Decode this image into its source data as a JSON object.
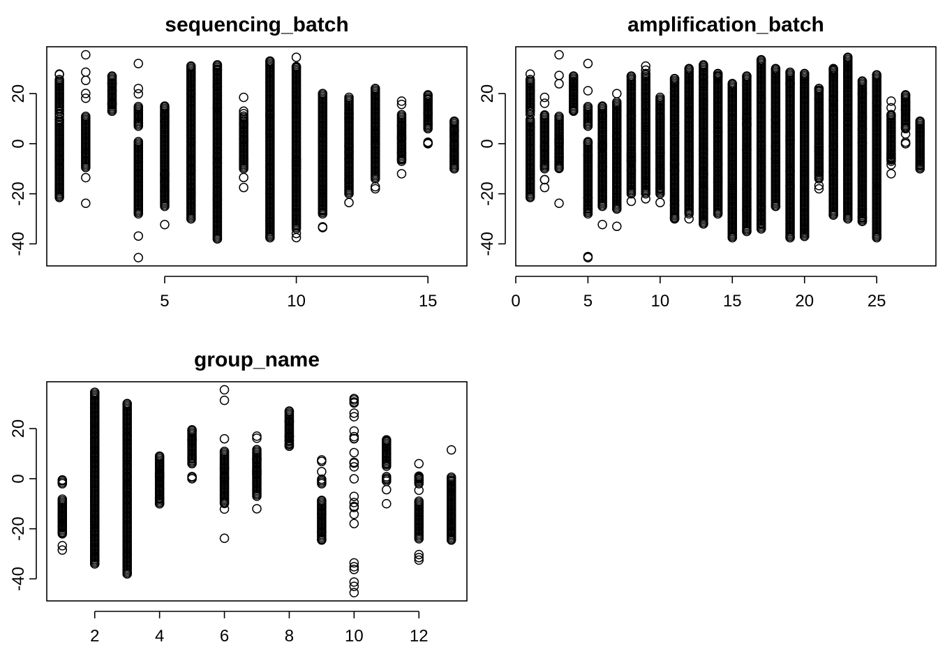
{
  "chart_data": [
    {
      "type": "scatter",
      "title": "sequencing_batch",
      "xlabel": "",
      "ylabel": "",
      "xlim": [
        0.52,
        16.48
      ],
      "ylim": [
        -48.8,
        38.7
      ],
      "xticks": [
        5,
        10,
        15
      ],
      "yticks": [
        -40,
        -20,
        0,
        20
      ],
      "groups": [
        {
          "x": 1,
          "ymin": -21.5,
          "ymax": 27.8,
          "dense": [
            [
              -21,
              10
            ],
            [
              13,
              26
            ]
          ]
        },
        {
          "x": 2,
          "ymin": -23.8,
          "ymax": 35.5,
          "dense": [
            [
              -9.5,
              11
            ]
          ]
        },
        {
          "x": 3,
          "ymin": 13,
          "ymax": 27,
          "dense": [
            [
              13,
              27
            ]
          ]
        },
        {
          "x": 4,
          "ymin": -45.5,
          "ymax": 32,
          "dense": [
            [
              -28,
              1
            ],
            [
              7,
              15
            ]
          ]
        },
        {
          "x": 5,
          "ymin": -32.3,
          "ymax": 15,
          "dense": [
            [
              -25,
              15
            ]
          ]
        },
        {
          "x": 6,
          "ymin": -30,
          "ymax": 31,
          "dense": [
            [
              -30,
              31
            ]
          ]
        },
        {
          "x": 7,
          "ymin": -38,
          "ymax": 31.5,
          "dense": [
            [
              -38,
              31.5
            ]
          ]
        },
        {
          "x": 8,
          "ymin": -17.5,
          "ymax": 18.5,
          "dense": [
            [
              -10,
              11
            ]
          ]
        },
        {
          "x": 9,
          "ymin": -37.5,
          "ymax": 33,
          "dense": [
            [
              -37.5,
              33
            ]
          ]
        },
        {
          "x": 10,
          "ymin": -37.5,
          "ymax": 34.5,
          "dense": [
            [
              -34,
              31
            ]
          ]
        },
        {
          "x": 11,
          "ymin": -33.5,
          "ymax": 20,
          "dense": [
            [
              -28,
              20
            ]
          ]
        },
        {
          "x": 12,
          "ymin": -23.5,
          "ymax": 18.5,
          "dense": [
            [
              -20,
              18
            ]
          ]
        },
        {
          "x": 13,
          "ymin": -18,
          "ymax": 22,
          "dense": [
            [
              -14,
              22
            ]
          ]
        },
        {
          "x": 14,
          "ymin": -12,
          "ymax": 17,
          "dense": [
            [
              -7,
              12
            ]
          ]
        },
        {
          "x": 15,
          "ymin": 0,
          "ymax": 19.5,
          "dense": [
            [
              0,
              1
            ],
            [
              6,
              19.5
            ]
          ]
        },
        {
          "x": 16,
          "ymin": -10,
          "ymax": 9,
          "dense": [
            [
              -10,
              9
            ]
          ]
        }
      ]
    },
    {
      "type": "scatter",
      "title": "amplification_batch",
      "xlabel": "",
      "ylabel": "",
      "xlim": [
        0,
        29.1
      ],
      "ylim": [
        -48.8,
        38.7
      ],
      "xticks": [
        0,
        5,
        10,
        15,
        20,
        25
      ],
      "yticks": [
        -40,
        -20,
        0,
        20
      ],
      "groups": [
        {
          "x": 1,
          "ymin": -21.5,
          "ymax": 27.8,
          "dense": [
            [
              -21,
              10
            ],
            [
              13,
              26
            ]
          ]
        },
        {
          "x": 2,
          "ymin": -17.5,
          "ymax": 18.5,
          "dense": [
            [
              -10,
              11
            ]
          ]
        },
        {
          "x": 3,
          "ymin": -23.8,
          "ymax": 35.5,
          "dense": [
            [
              -9.5,
              11
            ]
          ]
        },
        {
          "x": 4,
          "ymin": 13,
          "ymax": 27,
          "dense": [
            [
              13,
              27
            ]
          ]
        },
        {
          "x": 5,
          "ymin": -45.5,
          "ymax": 32,
          "dense": [
            [
              -28,
              1
            ],
            [
              7,
              15
            ]
          ]
        },
        {
          "x": 6,
          "ymin": -32.3,
          "ymax": 15,
          "dense": [
            [
              -25,
              15
            ]
          ]
        },
        {
          "x": 7,
          "ymin": -33,
          "ymax": 20,
          "dense": [
            [
              -26,
              17
            ]
          ]
        },
        {
          "x": 8,
          "ymin": -23,
          "ymax": 27,
          "dense": [
            [
              -20,
              27
            ]
          ]
        },
        {
          "x": 9,
          "ymin": -22,
          "ymax": 31,
          "dense": [
            [
              -20,
              28
            ]
          ]
        },
        {
          "x": 10,
          "ymin": -23.5,
          "ymax": 18.5,
          "dense": [
            [
              -20,
              18
            ]
          ]
        },
        {
          "x": 11,
          "ymin": -30,
          "ymax": 26,
          "dense": [
            [
              -30,
              26
            ]
          ]
        },
        {
          "x": 12,
          "ymin": -30,
          "ymax": 30,
          "dense": [
            [
              -28,
              30
            ]
          ]
        },
        {
          "x": 13,
          "ymin": -32,
          "ymax": 31.5,
          "dense": [
            [
              -32,
              31.5
            ]
          ]
        },
        {
          "x": 14,
          "ymin": -28,
          "ymax": 28,
          "dense": [
            [
              -28,
              28
            ]
          ]
        },
        {
          "x": 15,
          "ymin": -37.5,
          "ymax": 24,
          "dense": [
            [
              -37.5,
              24
            ]
          ]
        },
        {
          "x": 16,
          "ymin": -35,
          "ymax": 27,
          "dense": [
            [
              -35,
              27
            ]
          ]
        },
        {
          "x": 17,
          "ymin": -34,
          "ymax": 33.5,
          "dense": [
            [
              -34,
              33.5
            ]
          ]
        },
        {
          "x": 18,
          "ymin": -25,
          "ymax": 30,
          "dense": [
            [
              -25,
              30
            ]
          ]
        },
        {
          "x": 19,
          "ymin": -37.5,
          "ymax": 28.5,
          "dense": [
            [
              -37.5,
              28.5
            ]
          ]
        },
        {
          "x": 20,
          "ymin": -37,
          "ymax": 28,
          "dense": [
            [
              -37,
              28
            ]
          ]
        },
        {
          "x": 21,
          "ymin": -18,
          "ymax": 22,
          "dense": [
            [
              -14,
              22
            ]
          ]
        },
        {
          "x": 22,
          "ymin": -28.5,
          "ymax": 30,
          "dense": [
            [
              -28.5,
              30
            ]
          ]
        },
        {
          "x": 23,
          "ymin": -30,
          "ymax": 34.5,
          "dense": [
            [
              -30,
              34.5
            ]
          ]
        },
        {
          "x": 24,
          "ymin": -31,
          "ymax": 25,
          "dense": [
            [
              -31,
              25
            ]
          ]
        },
        {
          "x": 25,
          "ymin": -37.5,
          "ymax": 27.5,
          "dense": [
            [
              -37.5,
              27.5
            ]
          ]
        },
        {
          "x": 26,
          "ymin": -12,
          "ymax": 17,
          "dense": [
            [
              -7,
              12
            ]
          ]
        },
        {
          "x": 27,
          "ymin": 0,
          "ymax": 19.5,
          "dense": [
            [
              0,
              1
            ],
            [
              6,
              19.5
            ]
          ]
        },
        {
          "x": 28,
          "ymin": -10,
          "ymax": 9,
          "dense": [
            [
              -10,
              9
            ]
          ]
        }
      ]
    },
    {
      "type": "scatter",
      "title": "group_name",
      "xlabel": "",
      "ylabel": "",
      "xlim": [
        0.52,
        13.48
      ],
      "ylim": [
        -48.8,
        38.7
      ],
      "xticks": [
        2,
        4,
        6,
        8,
        10,
        12
      ],
      "yticks": [
        -40,
        -20,
        0,
        20
      ],
      "groups": [
        {
          "x": 1,
          "ymin": -28.5,
          "ymax": -0.5,
          "dense": [
            [
              -22,
              -8
            ],
            [
              -2,
              -0.5
            ]
          ]
        },
        {
          "x": 2,
          "ymin": -34,
          "ymax": 34.5,
          "dense": [
            [
              -34,
              34.5
            ]
          ]
        },
        {
          "x": 3,
          "ymin": -38,
          "ymax": 30,
          "dense": [
            [
              -38,
              30
            ]
          ]
        },
        {
          "x": 4,
          "ymin": -10,
          "ymax": 9,
          "dense": [
            [
              -10,
              9
            ]
          ]
        },
        {
          "x": 5,
          "ymin": 0,
          "ymax": 19.5,
          "dense": [
            [
              0,
              1
            ],
            [
              6,
              19.5
            ]
          ]
        },
        {
          "x": 6,
          "ymin": -23.8,
          "ymax": 35.5,
          "dense": [
            [
              -9.5,
              11
            ]
          ]
        },
        {
          "x": 7,
          "ymin": -12,
          "ymax": 17,
          "dense": [
            [
              -7,
              12
            ]
          ]
        },
        {
          "x": 8,
          "ymin": 13,
          "ymax": 27,
          "dense": [
            [
              13,
              27
            ]
          ]
        },
        {
          "x": 9,
          "ymin": -24.5,
          "ymax": 7.5,
          "dense": [
            [
              -24,
              -9
            ],
            [
              -2,
              0
            ]
          ]
        },
        {
          "x": 10,
          "ymin": -45.5,
          "ymax": 32,
          "dense": []
        },
        {
          "x": 11,
          "ymin": -10,
          "ymax": 15.5,
          "dense": [
            [
              5,
              15.5
            ],
            [
              -1,
              1
            ]
          ]
        },
        {
          "x": 12,
          "ymin": -32.5,
          "ymax": 6,
          "dense": [
            [
              -24,
              -9
            ],
            [
              -2,
              1
            ]
          ]
        },
        {
          "x": 13,
          "ymin": -24.5,
          "ymax": 11.5,
          "dense": [
            [
              -24,
              1
            ]
          ]
        }
      ]
    }
  ]
}
